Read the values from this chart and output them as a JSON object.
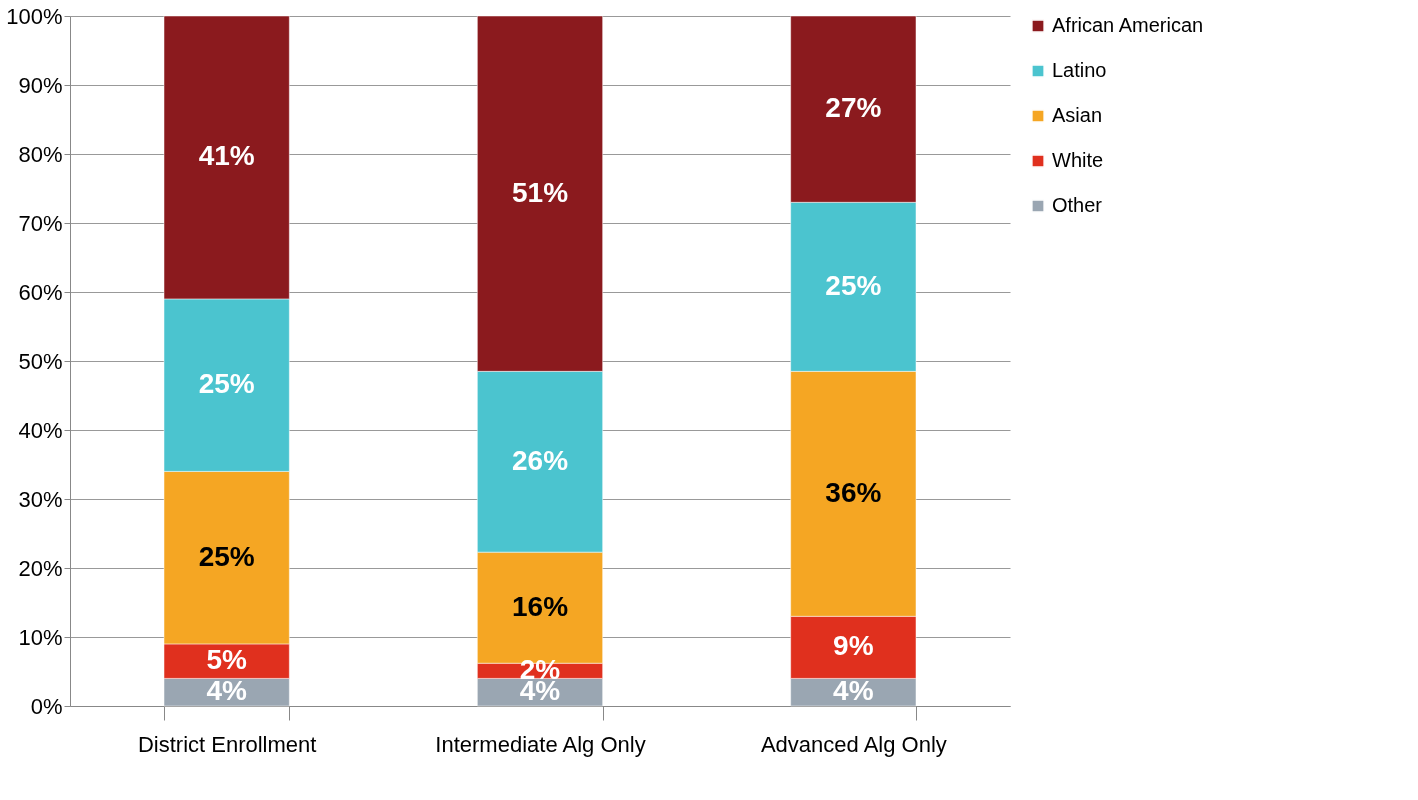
{
  "chart_data": {
    "type": "bar",
    "stacked": true,
    "categories": [
      "District Enrollment",
      "Intermediate Alg Only",
      "Advanced Alg Only"
    ],
    "series": [
      {
        "name": "Other",
        "color": "#9aa6b2",
        "values": [
          4,
          4,
          4
        ],
        "value_labels": [
          "4%",
          "4%",
          "4%"
        ]
      },
      {
        "name": "White",
        "color": "#e0301e",
        "values": [
          5,
          2.2,
          9
        ],
        "value_labels": [
          "5%",
          "2%",
          "9%"
        ]
      },
      {
        "name": "Asian",
        "color": "#f5a623",
        "values": [
          25,
          16.1,
          35.5
        ],
        "value_labels": [
          "25%",
          "16%",
          "36%"
        ]
      },
      {
        "name": "Latino",
        "color": "#4bc4cf",
        "values": [
          25,
          26.2,
          24.5
        ],
        "value_labels": [
          "25%",
          "26%",
          "25%"
        ]
      },
      {
        "name": "African American",
        "color": "#8b1a1e",
        "values": [
          41,
          51.5,
          27
        ],
        "value_labels": [
          "41%",
          "51%",
          "27%"
        ]
      }
    ],
    "ylim": [
      0,
      100
    ],
    "yticks": [
      {
        "value": 0,
        "label": "0%"
      },
      {
        "value": 10,
        "label": "10%"
      },
      {
        "value": 20,
        "label": "20%"
      },
      {
        "value": 30,
        "label": "30%"
      },
      {
        "value": 40,
        "label": "40%"
      },
      {
        "value": 50,
        "label": "50%"
      },
      {
        "value": 60,
        "label": "60%"
      },
      {
        "value": 70,
        "label": "70%"
      },
      {
        "value": 80,
        "label": "80%"
      },
      {
        "value": 90,
        "label": "90%"
      },
      {
        "value": 100,
        "label": "100%"
      }
    ],
    "grid": "y",
    "legend": "right"
  }
}
